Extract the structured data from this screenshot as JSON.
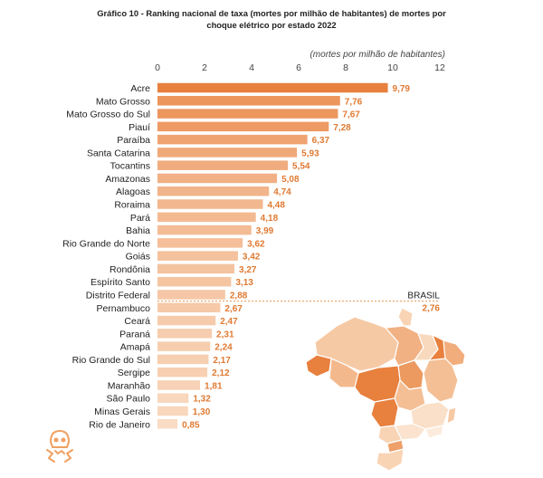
{
  "title_line1": "Gráfico 10 - Ranking nacional de taxa (mortes por milhão de habitantes) de mortes por",
  "title_line2": "choque elétrico por estado 2022",
  "colors": {
    "bar_max": "#e8803e",
    "bar_min": "#f9dcc4",
    "value_label": "#e07a33",
    "reference_line": "#e8954f",
    "map_dark": "#e8803e",
    "map_light": "#fbe3cf",
    "icon": "#f0a060"
  },
  "icon": "skull-lightning-icon",
  "chart_data": {
    "type": "bar",
    "orientation": "horizontal",
    "xlabel": "(mortes por milhão de habitantes)",
    "xlim": [
      0,
      12
    ],
    "xticks": [
      0,
      2,
      4,
      6,
      8,
      10,
      12
    ],
    "categories": [
      "Acre",
      "Mato Grosso",
      "Mato Grosso do Sul",
      "Piauí",
      "Paraíba",
      "Santa Catarina",
      "Tocantins",
      "Amazonas",
      "Alagoas",
      "Roraima",
      "Pará",
      "Bahia",
      "Rio Grande do Norte",
      "Goiás",
      "Rondônia",
      "Espírito Santo",
      "Distrito Federal",
      "Pernambuco",
      "Ceará",
      "Paraná",
      "Amapá",
      "Rio Grande do Sul",
      "Sergipe",
      "Maranhão",
      "São Paulo",
      "Minas Gerais",
      "Rio de Janeiro"
    ],
    "values": [
      9.79,
      7.76,
      7.67,
      7.28,
      6.37,
      5.93,
      5.54,
      5.08,
      4.74,
      4.48,
      4.18,
      3.99,
      3.62,
      3.42,
      3.27,
      3.13,
      2.88,
      2.67,
      2.47,
      2.31,
      2.24,
      2.17,
      2.12,
      1.81,
      1.32,
      1.3,
      0.85
    ],
    "value_labels": [
      "9,79",
      "7,76",
      "7,67",
      "7,28",
      "6,37",
      "5,93",
      "5,54",
      "5,08",
      "4,74",
      "4,48",
      "4,18",
      "3,99",
      "3,62",
      "3,42",
      "3,27",
      "3,13",
      "2,88",
      "2,67",
      "2,47",
      "2,31",
      "2,24",
      "2,17",
      "2,12",
      "1,81",
      "1,32",
      "1,30",
      "0,85"
    ],
    "reference": {
      "label": "BRASIL",
      "value": 2.76,
      "value_label": "2,76"
    }
  }
}
